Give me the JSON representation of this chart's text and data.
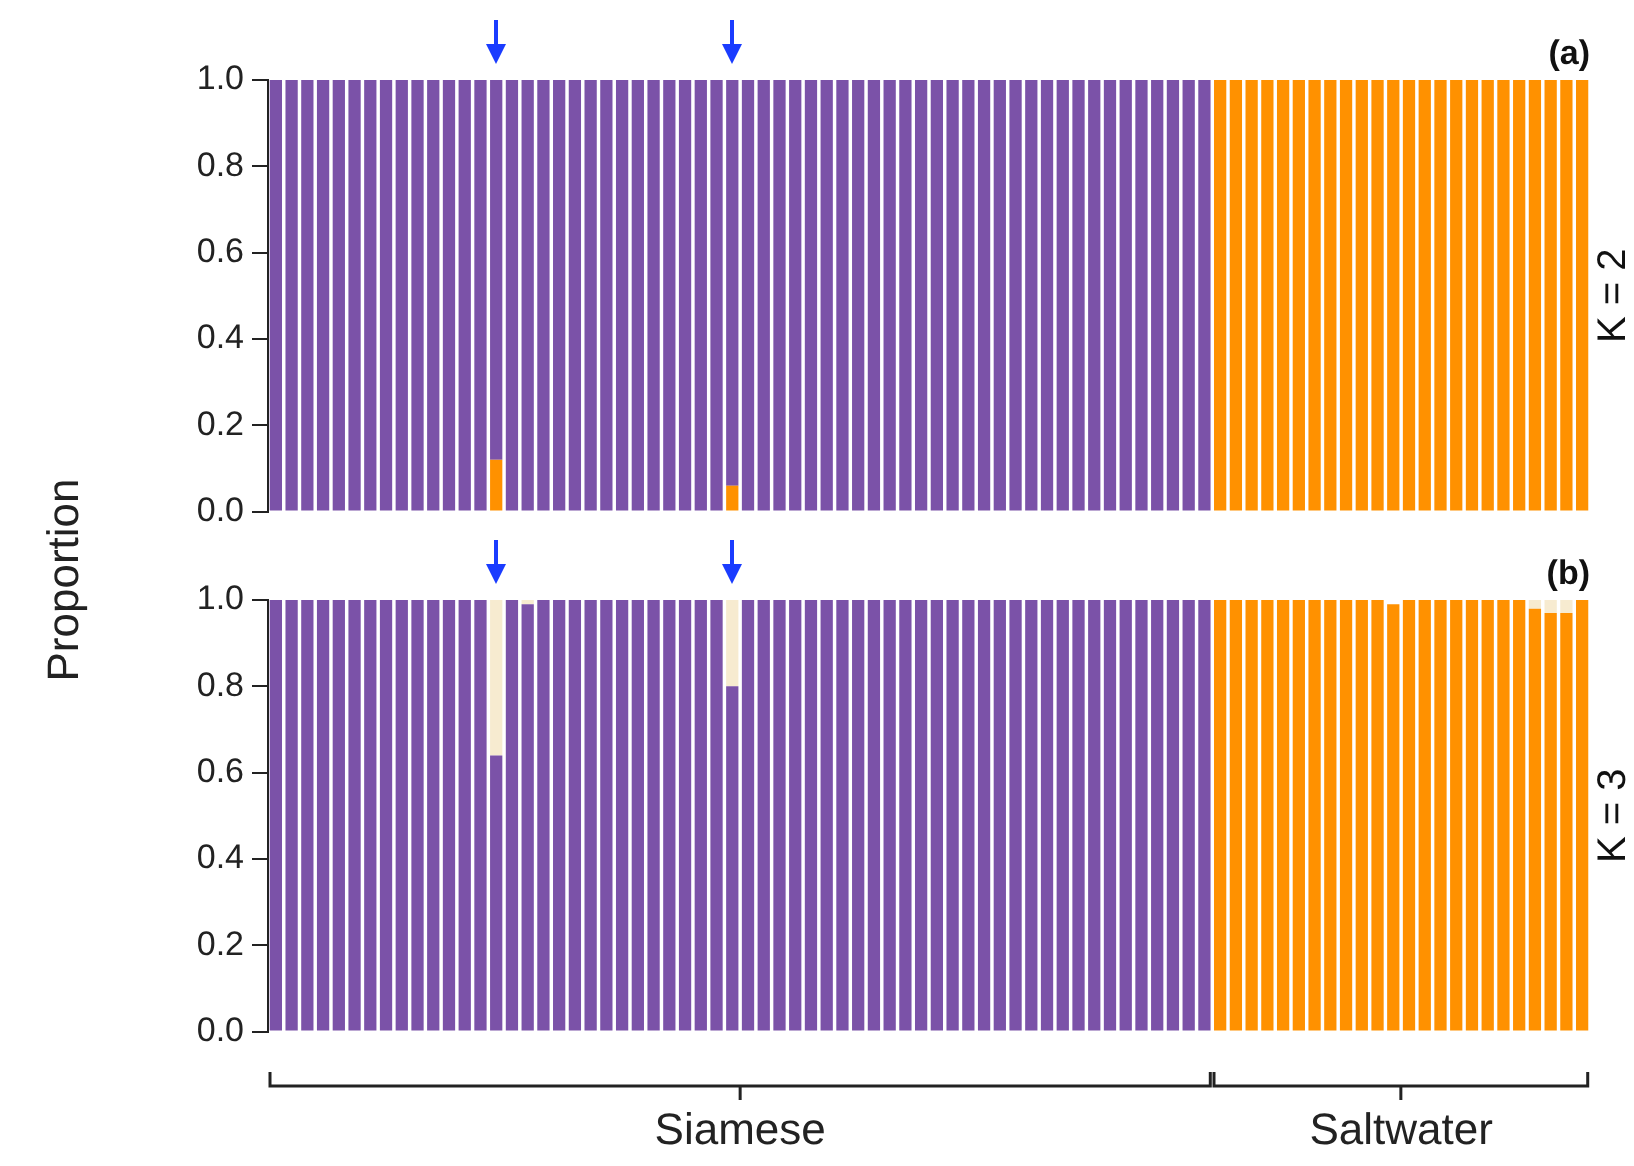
{
  "chart_data": [
    {
      "type": "bar",
      "title": "(a)",
      "ylabel": "Proportion",
      "y2label": "K = 2",
      "stacked": true,
      "legend": false,
      "categories": [
        null,
        null,
        null,
        null,
        null,
        null,
        null,
        null,
        null,
        null,
        null,
        null,
        null,
        null,
        null,
        null,
        null,
        null,
        null,
        null,
        null,
        null,
        null,
        null,
        null,
        null,
        null,
        null,
        null,
        null,
        null,
        null,
        null,
        null,
        null,
        null,
        null,
        null,
        null,
        null,
        null,
        null,
        null,
        null,
        null,
        null,
        null,
        null,
        null,
        null,
        null,
        null,
        null,
        null,
        null,
        null,
        null,
        null,
        null,
        null,
        null,
        null,
        null,
        null,
        null,
        null,
        null,
        null,
        null,
        null,
        null,
        null,
        null,
        null,
        null,
        null,
        null,
        null,
        null,
        null,
        null,
        null,
        null,
        null
      ],
      "ylim": [
        0,
        1
      ],
      "yticks": [
        {
          "value": 0,
          "label": "0.0"
        },
        {
          "value": 0.2,
          "label": "0.2"
        },
        {
          "value": 0.4,
          "label": "0.4"
        },
        {
          "value": 0.6,
          "label": "0.6"
        },
        {
          "value": 0.8,
          "label": "0.8"
        },
        {
          "value": 1,
          "label": "1.0"
        }
      ],
      "tick_labels": "y",
      "grid": false,
      "series": [
        {
          "color": "#ff9100",
          "values": [
            0,
            0,
            0,
            0,
            0,
            0,
            0,
            0,
            0,
            0,
            0,
            0,
            0,
            0,
            0.12,
            0,
            0,
            0,
            0,
            0,
            0,
            0,
            0,
            0,
            0,
            0,
            0,
            0,
            0,
            0.06,
            0,
            0,
            0,
            0,
            0,
            0,
            0,
            0,
            0,
            0,
            0,
            0,
            0,
            0,
            0,
            0,
            0,
            0,
            0,
            0,
            0,
            0,
            0,
            0,
            0,
            0,
            0,
            0,
            0,
            0,
            1,
            1,
            1,
            1,
            1,
            1,
            1,
            1,
            1,
            1,
            1,
            1,
            1,
            1,
            1,
            1,
            1,
            1,
            1,
            1,
            1,
            1,
            1,
            1
          ]
        },
        {
          "color": "#7b52a8",
          "values": [
            1,
            1,
            1,
            1,
            1,
            1,
            1,
            1,
            1,
            1,
            1,
            1,
            1,
            1,
            0.88,
            1,
            1,
            1,
            1,
            1,
            1,
            1,
            1,
            1,
            1,
            1,
            1,
            1,
            1,
            0.94,
            1,
            1,
            1,
            1,
            1,
            1,
            1,
            1,
            1,
            1,
            1,
            1,
            1,
            1,
            1,
            1,
            1,
            1,
            1,
            1,
            1,
            1,
            1,
            1,
            1,
            1,
            1,
            1,
            1,
            1,
            0,
            0,
            0,
            0,
            0,
            0,
            0,
            0,
            0,
            0,
            0,
            0,
            0,
            0,
            0,
            0,
            0,
            0,
            0,
            0,
            0,
            0,
            0,
            0
          ]
        }
      ]
    },
    {
      "type": "bar",
      "title": "(b)",
      "y2label": "K = 3",
      "stacked": true,
      "legend": false,
      "categories": [
        null,
        null,
        null,
        null,
        null,
        null,
        null,
        null,
        null,
        null,
        null,
        null,
        null,
        null,
        null,
        null,
        null,
        null,
        null,
        null,
        null,
        null,
        null,
        null,
        null,
        null,
        null,
        null,
        null,
        null,
        null,
        null,
        null,
        null,
        null,
        null,
        null,
        null,
        null,
        null,
        null,
        null,
        null,
        null,
        null,
        null,
        null,
        null,
        null,
        null,
        null,
        null,
        null,
        null,
        null,
        null,
        null,
        null,
        null,
        null,
        null,
        null,
        null,
        null,
        null,
        null,
        null,
        null,
        null,
        null,
        null,
        null,
        null,
        null,
        null,
        null,
        null,
        null,
        null,
        null,
        null,
        null,
        null,
        null
      ],
      "ylim": [
        0,
        1
      ],
      "yticks": [
        {
          "value": 0,
          "label": "0.0"
        },
        {
          "value": 0.2,
          "label": "0.2"
        },
        {
          "value": 0.4,
          "label": "0.4"
        },
        {
          "value": 0.6,
          "label": "0.6"
        },
        {
          "value": 0.8,
          "label": "0.8"
        },
        {
          "value": 1,
          "label": "1.0"
        }
      ],
      "tick_labels": "y",
      "grid": false,
      "annotations": [
        "Siamese",
        "Saltwater"
      ],
      "series": [
        {
          "color": "#7b52a8",
          "values": [
            1,
            1,
            1,
            1,
            1,
            1,
            1,
            1,
            1,
            1,
            1,
            1,
            1,
            1,
            0.64,
            1,
            0.99,
            1,
            1,
            1,
            1,
            1,
            1,
            1,
            1,
            1,
            1,
            1,
            1,
            0.8,
            1,
            1,
            1,
            1,
            1,
            1,
            1,
            1,
            1,
            1,
            1,
            1,
            1,
            1,
            1,
            1,
            1,
            1,
            1,
            1,
            1,
            1,
            1,
            1,
            1,
            1,
            1,
            1,
            1,
            1,
            0,
            0,
            0,
            0,
            0,
            0,
            0,
            0,
            0,
            0,
            0,
            0,
            0,
            0,
            0,
            0,
            0,
            0,
            0,
            0,
            0,
            0,
            0,
            0
          ]
        },
        {
          "color": "#ff9100",
          "values": [
            0,
            0,
            0,
            0,
            0,
            0,
            0,
            0,
            0,
            0,
            0,
            0,
            0,
            0,
            0,
            0,
            0,
            0,
            0,
            0,
            0,
            0,
            0,
            0,
            0,
            0,
            0,
            0,
            0,
            0,
            0,
            0,
            0,
            0,
            0,
            0,
            0,
            0,
            0,
            0,
            0,
            0,
            0,
            0,
            0,
            0,
            0,
            0,
            0,
            0,
            0,
            0,
            0,
            0,
            0,
            0,
            0,
            0,
            0,
            0,
            1,
            1,
            1,
            1,
            1,
            1,
            1,
            1,
            1,
            1,
            1,
            0.99,
            1,
            1,
            1,
            1,
            1,
            1,
            1,
            1,
            0.98,
            0.97,
            0.97,
            1
          ]
        },
        {
          "color": "#f7ebd0",
          "values": [
            0,
            0,
            0,
            0,
            0,
            0,
            0,
            0,
            0,
            0,
            0,
            0,
            0,
            0,
            0.36,
            0,
            0.01,
            0,
            0,
            0,
            0,
            0,
            0,
            0,
            0,
            0,
            0,
            0,
            0,
            0.2,
            0,
            0,
            0,
            0,
            0,
            0,
            0,
            0,
            0,
            0,
            0,
            0,
            0,
            0,
            0,
            0,
            0,
            0,
            0,
            0,
            0,
            0,
            0,
            0,
            0,
            0,
            0,
            0,
            0,
            0,
            0,
            0,
            0,
            0,
            0,
            0,
            0,
            0,
            0,
            0,
            0,
            0,
            0,
            0,
            0,
            0,
            0,
            0,
            0,
            0,
            0.02,
            0.03,
            0.03,
            0
          ]
        }
      ]
    }
  ]
}
